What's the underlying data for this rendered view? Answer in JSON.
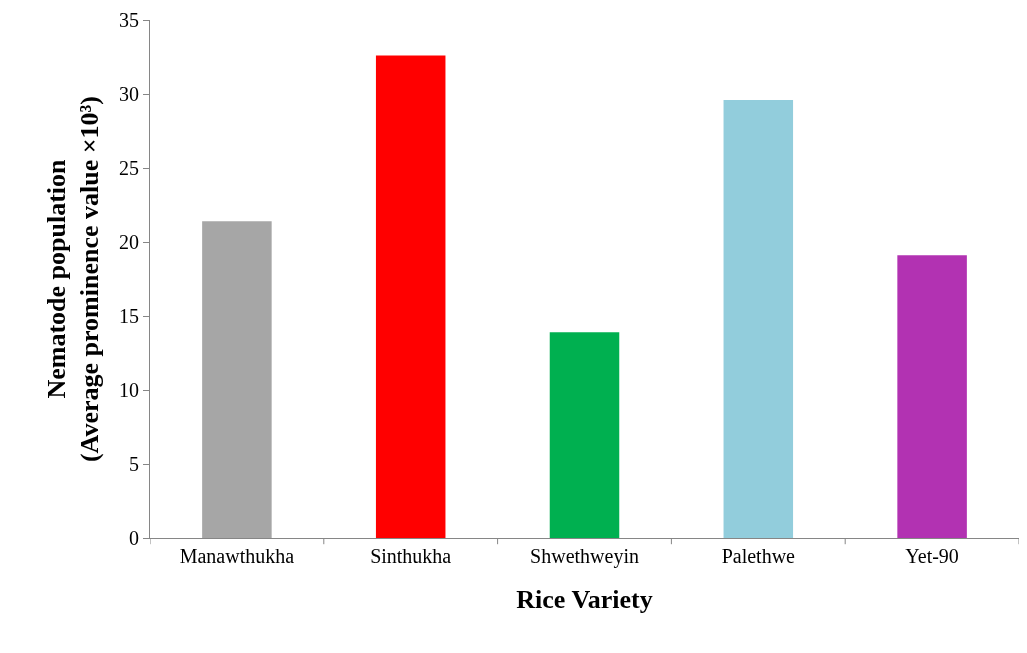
{
  "chart_data": {
    "type": "bar",
    "xlabel": "Rice Variety",
    "ylabel": "Nematode population\n(Average prominence value ×10³)",
    "categories": [
      "Manawthukha",
      "Sinthukha",
      "Shwethweyin",
      "Palethwe",
      "Yet-90"
    ],
    "values": [
      21.4,
      32.6,
      13.9,
      29.6,
      19.1
    ],
    "colors": [
      "#a6a6a6",
      "#ff0000",
      "#00b050",
      "#92cddc",
      "#b232b2"
    ],
    "ylim": [
      0,
      35
    ],
    "yticks": [
      0,
      5,
      10,
      15,
      20,
      25,
      30,
      35
    ]
  }
}
